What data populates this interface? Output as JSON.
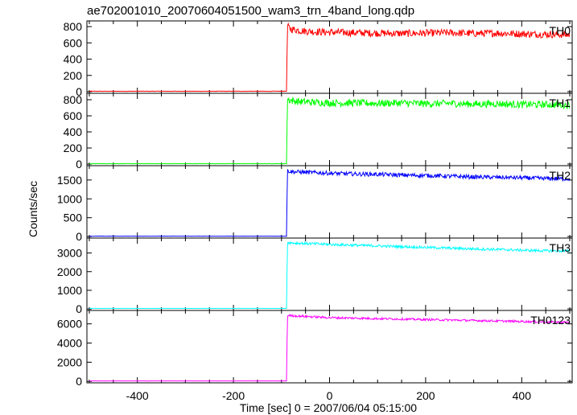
{
  "title": "ae702001010_20070604051500_wam3_trn_4band_long.qdp",
  "ylabel": "Counts/sec",
  "xlabel": "Time [sec] 0 = 2007/06/04 05:15:00",
  "chart_data": {
    "type": "line",
    "title": "ae702001010_20070604051500_wam3_trn_4band_long.qdp",
    "xlabel": "Time [sec] 0 = 2007/06/04 05:15:00",
    "ylabel": "Counts/sec",
    "xlim": [
      -505,
      505
    ],
    "xticks": [
      -400,
      -200,
      0,
      200,
      400
    ],
    "grid": false,
    "panels": [
      {
        "name": "TH0",
        "color": "#ff0000",
        "ylim": [
          -20,
          870
        ],
        "yticks": [
          0,
          200,
          400,
          600,
          800
        ],
        "x": [
          -500,
          -400,
          -300,
          -200,
          -100,
          -89,
          -88,
          -85,
          -80,
          -60,
          -40,
          -20,
          0,
          50,
          100,
          150,
          200,
          250,
          300,
          350,
          400,
          450,
          500
        ],
        "y": [
          5,
          5,
          5,
          5,
          5,
          5,
          800,
          790,
          770,
          750,
          740,
          735,
          730,
          725,
          720,
          715,
          720,
          725,
          715,
          720,
          710,
          705,
          700
        ],
        "noise": 45
      },
      {
        "name": "TH1",
        "color": "#00ff00",
        "ylim": [
          -20,
          880
        ],
        "yticks": [
          0,
          200,
          400,
          600,
          800
        ],
        "x": [
          -500,
          -400,
          -300,
          -200,
          -100,
          -89,
          -88,
          -85,
          -80,
          -60,
          -40,
          -20,
          0,
          50,
          100,
          150,
          200,
          250,
          300,
          350,
          400,
          450,
          500
        ],
        "y": [
          5,
          5,
          5,
          5,
          5,
          5,
          810,
          800,
          790,
          775,
          770,
          765,
          760,
          760,
          755,
          760,
          750,
          755,
          745,
          750,
          740,
          740,
          735
        ],
        "noise": 45
      },
      {
        "name": "TH2",
        "color": "#0000ff",
        "ylim": [
          -40,
          1880
        ],
        "yticks": [
          0,
          500,
          1000,
          1500
        ],
        "x": [
          -500,
          -400,
          -300,
          -200,
          -100,
          -89,
          -88,
          -85,
          -80,
          -60,
          -40,
          -20,
          0,
          50,
          100,
          150,
          200,
          250,
          300,
          350,
          400,
          450,
          500
        ],
        "y": [
          10,
          10,
          10,
          10,
          10,
          10,
          1750,
          1740,
          1720,
          1710,
          1700,
          1690,
          1680,
          1660,
          1650,
          1630,
          1620,
          1600,
          1580,
          1570,
          1560,
          1540,
          1530
        ],
        "noise": 55
      },
      {
        "name": "TH3",
        "color": "#00ffff",
        "ylim": [
          -80,
          3800
        ],
        "yticks": [
          0,
          1000,
          2000,
          3000
        ],
        "x": [
          -500,
          -400,
          -300,
          -200,
          -100,
          -89,
          -88,
          -85,
          -80,
          -60,
          -40,
          -20,
          0,
          50,
          100,
          150,
          200,
          250,
          300,
          350,
          400,
          450,
          500
        ],
        "y": [
          30,
          30,
          30,
          30,
          30,
          30,
          3550,
          3560,
          3540,
          3520,
          3500,
          3480,
          3460,
          3420,
          3380,
          3340,
          3300,
          3260,
          3220,
          3190,
          3150,
          3120,
          3100
        ],
        "noise": 70
      },
      {
        "name": "TH0123",
        "color": "#ff00ff",
        "ylim": [
          -150,
          7400
        ],
        "yticks": [
          0,
          2000,
          4000,
          6000
        ],
        "x": [
          -500,
          -400,
          -300,
          -200,
          -100,
          -89,
          -88,
          -85,
          -80,
          -60,
          -40,
          -20,
          0,
          50,
          100,
          150,
          200,
          250,
          300,
          350,
          400,
          450,
          500
        ],
        "y": [
          50,
          50,
          50,
          50,
          50,
          50,
          6800,
          6900,
          6850,
          6800,
          6750,
          6700,
          6650,
          6600,
          6550,
          6500,
          6450,
          6400,
          6350,
          6300,
          6250,
          6200,
          6150
        ],
        "noise": 110
      }
    ]
  }
}
